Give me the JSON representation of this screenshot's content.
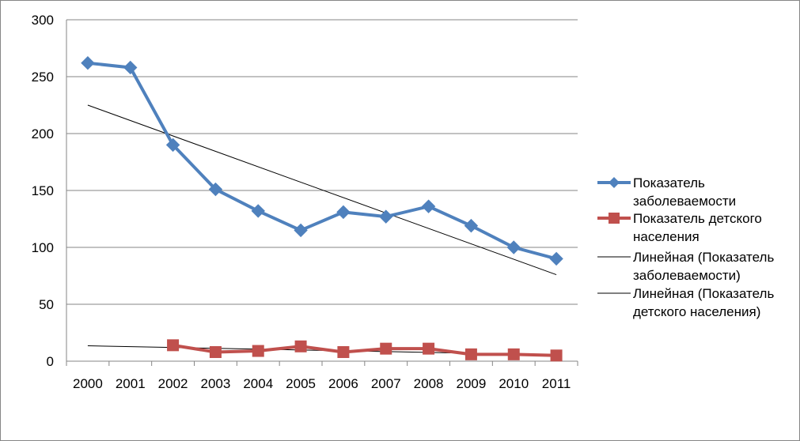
{
  "chart_data": {
    "type": "line",
    "categories": [
      "2000",
      "2001",
      "2002",
      "2003",
      "2004",
      "2005",
      "2006",
      "2007",
      "2008",
      "2009",
      "2010",
      "2011"
    ],
    "ylim": [
      0,
      300
    ],
    "yticks": [
      0,
      50,
      100,
      150,
      200,
      250,
      300
    ],
    "grid": true,
    "legend_position": "right",
    "series": [
      {
        "name": "Показатель заболеваемости",
        "legend_lines": [
          "Показатель",
          "заболеваемости"
        ],
        "color": "#4F81BD",
        "marker": "diamond",
        "values": [
          262,
          258,
          190,
          151,
          132,
          115,
          131,
          127,
          136,
          119,
          100,
          90
        ]
      },
      {
        "name": "Показатель детского населения",
        "legend_lines": [
          "Показатель детского",
          "населения"
        ],
        "color": "#C0504D",
        "marker": "square",
        "values": [
          null,
          null,
          14,
          8,
          9,
          13,
          8,
          11,
          11,
          6,
          6,
          5
        ]
      }
    ],
    "trendlines": [
      {
        "name": "Линейная (Показатель заболеваемости)",
        "legend_lines": [
          "Линейная (Показатель",
          "заболеваемости)"
        ],
        "color": "#000000",
        "from": {
          "x": "2000",
          "y": 225
        },
        "to": {
          "x": "2011",
          "y": 76
        }
      },
      {
        "name": "Линейная (Показатель детского населения)",
        "legend_lines": [
          "Линейная (Показатель",
          "детского населения)"
        ],
        "color": "#000000",
        "from": {
          "x": "2000",
          "y": 13.5
        },
        "to": {
          "x": "2011",
          "y": 5.5
        }
      }
    ]
  }
}
